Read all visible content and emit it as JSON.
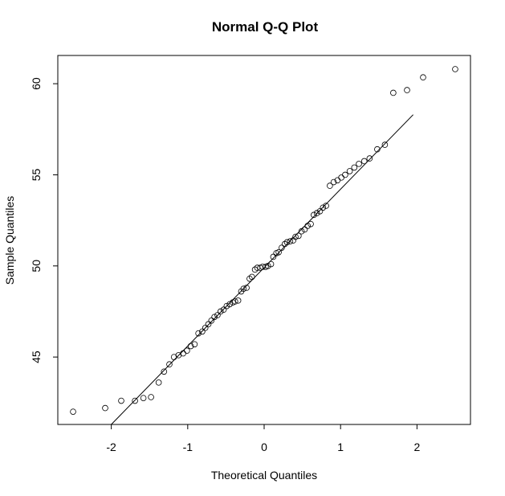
{
  "chart_data": {
    "type": "scatter",
    "title": "Normal Q-Q Plot",
    "xlabel": "Theoretical Quantiles",
    "ylabel": "Sample Quantiles",
    "xlim": [
      -2.5,
      2.5
    ],
    "ylim": [
      41.3,
      60.8
    ],
    "grid": false,
    "legend": "none",
    "x_ticks": [
      -2,
      -1,
      0,
      1,
      2
    ],
    "y_ticks": [
      45,
      50,
      55,
      60
    ],
    "reference_line": {
      "x1": -2.0,
      "y1": 41.3,
      "x2": 1.95,
      "y2": 58.3
    },
    "series": [
      {
        "points": [
          [
            -2.5,
            42.0
          ],
          [
            -2.08,
            42.2
          ],
          [
            -1.87,
            42.6
          ],
          [
            -1.69,
            42.6
          ],
          [
            -1.58,
            42.75
          ],
          [
            -1.48,
            42.8
          ],
          [
            -1.38,
            43.6
          ],
          [
            -1.31,
            44.2
          ],
          [
            -1.24,
            44.6
          ],
          [
            -1.18,
            45.0
          ],
          [
            -1.12,
            45.1
          ],
          [
            -1.06,
            45.2
          ],
          [
            -1.01,
            45.35
          ],
          [
            -0.96,
            45.6
          ],
          [
            -0.91,
            45.7
          ],
          [
            -0.86,
            46.3
          ],
          [
            -0.81,
            46.4
          ],
          [
            -0.77,
            46.6
          ],
          [
            -0.73,
            46.8
          ],
          [
            -0.69,
            47.0
          ],
          [
            -0.65,
            47.2
          ],
          [
            -0.61,
            47.3
          ],
          [
            -0.57,
            47.5
          ],
          [
            -0.53,
            47.6
          ],
          [
            -0.49,
            47.8
          ],
          [
            -0.45,
            47.9
          ],
          [
            -0.41,
            48.0
          ],
          [
            -0.38,
            48.05
          ],
          [
            -0.34,
            48.1
          ],
          [
            -0.3,
            48.6
          ],
          [
            -0.27,
            48.75
          ],
          [
            -0.23,
            48.8
          ],
          [
            -0.19,
            49.3
          ],
          [
            -0.16,
            49.4
          ],
          [
            -0.12,
            49.8
          ],
          [
            -0.09,
            49.9
          ],
          [
            -0.05,
            49.9
          ],
          [
            -0.02,
            49.95
          ],
          [
            0.02,
            49.95
          ],
          [
            0.05,
            50.0
          ],
          [
            0.09,
            50.1
          ],
          [
            0.12,
            50.5
          ],
          [
            0.16,
            50.7
          ],
          [
            0.19,
            50.75
          ],
          [
            0.23,
            51.0
          ],
          [
            0.27,
            51.2
          ],
          [
            0.3,
            51.3
          ],
          [
            0.34,
            51.35
          ],
          [
            0.38,
            51.4
          ],
          [
            0.41,
            51.6
          ],
          [
            0.45,
            51.65
          ],
          [
            0.49,
            51.9
          ],
          [
            0.53,
            52.0
          ],
          [
            0.57,
            52.2
          ],
          [
            0.61,
            52.3
          ],
          [
            0.65,
            52.8
          ],
          [
            0.69,
            52.9
          ],
          [
            0.73,
            53.0
          ],
          [
            0.77,
            53.2
          ],
          [
            0.81,
            53.3
          ],
          [
            0.86,
            54.4
          ],
          [
            0.91,
            54.6
          ],
          [
            0.96,
            54.7
          ],
          [
            1.01,
            54.85
          ],
          [
            1.06,
            55.0
          ],
          [
            1.12,
            55.2
          ],
          [
            1.18,
            55.4
          ],
          [
            1.24,
            55.6
          ],
          [
            1.31,
            55.75
          ],
          [
            1.38,
            55.9
          ],
          [
            1.48,
            56.4
          ],
          [
            1.58,
            56.65
          ],
          [
            1.69,
            59.5
          ],
          [
            1.87,
            59.65
          ],
          [
            2.08,
            60.35
          ],
          [
            2.5,
            60.8
          ]
        ]
      }
    ]
  }
}
